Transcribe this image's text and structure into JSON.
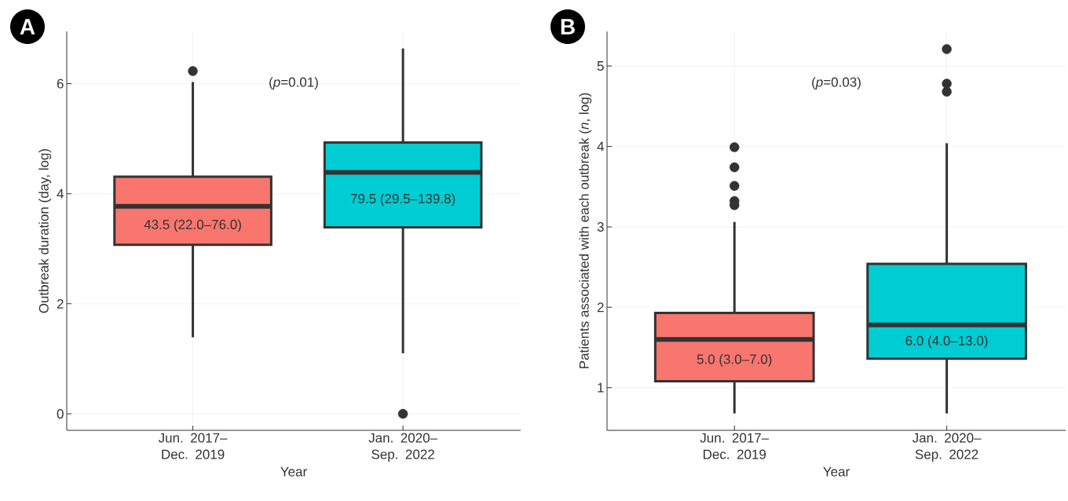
{
  "chart_data": [
    {
      "type": "box",
      "title": "A",
      "xlabel": "Year",
      "ylabel": "Outbreak duration (day, log)",
      "categories": [
        "Jun. 2017– Dec. 2019",
        "Jan. 2020– Sep. 2022"
      ],
      "colors": [
        "#f8766d",
        "#00cdd3"
      ],
      "boxes": [
        {
          "low": 1.39,
          "q1": 3.07,
          "median": 3.77,
          "q3": 4.31,
          "high": 6.03,
          "outliers": [
            6.23
          ]
        },
        {
          "low": 1.1,
          "q1": 3.39,
          "median": 4.39,
          "q3": 4.93,
          "high": 6.64,
          "outliers": [
            0
          ]
        }
      ],
      "ylim": [
        -0.3,
        6.95
      ],
      "yticks": [
        0,
        2,
        4,
        6
      ],
      "grid": true,
      "annotations": [
        "43.5 (22.0–76.0)",
        "79.5 (29.5–139.8)",
        "(*p*=0.01)"
      ]
    },
    {
      "type": "box",
      "title": "B",
      "xlabel": "Year",
      "ylabel": "Patients associated with each outbreak (*n*, log)",
      "categories": [
        "Jun. 2017– Dec. 2019",
        "Jan. 2020– Sep. 2022"
      ],
      "colors": [
        "#f8766d",
        "#00cdd3"
      ],
      "boxes": [
        {
          "low": 0.68,
          "q1": 1.08,
          "median": 1.6,
          "q3": 1.93,
          "high": 3.06,
          "outliers": [
            3.99,
            3.74,
            3.51,
            3.32,
            3.27
          ]
        },
        {
          "low": 0.68,
          "q1": 1.36,
          "median": 1.78,
          "q3": 2.54,
          "high": 4.04,
          "outliers": [
            5.21,
            4.78,
            4.68
          ]
        }
      ],
      "ylim": [
        0.47,
        5.43
      ],
      "yticks": [
        1,
        2,
        3,
        4,
        5
      ],
      "grid": true,
      "annotations": [
        "5.0 (3.0–7.0)",
        "6.0 (4.0–13.0)",
        "(*p*=0.03)"
      ]
    }
  ]
}
